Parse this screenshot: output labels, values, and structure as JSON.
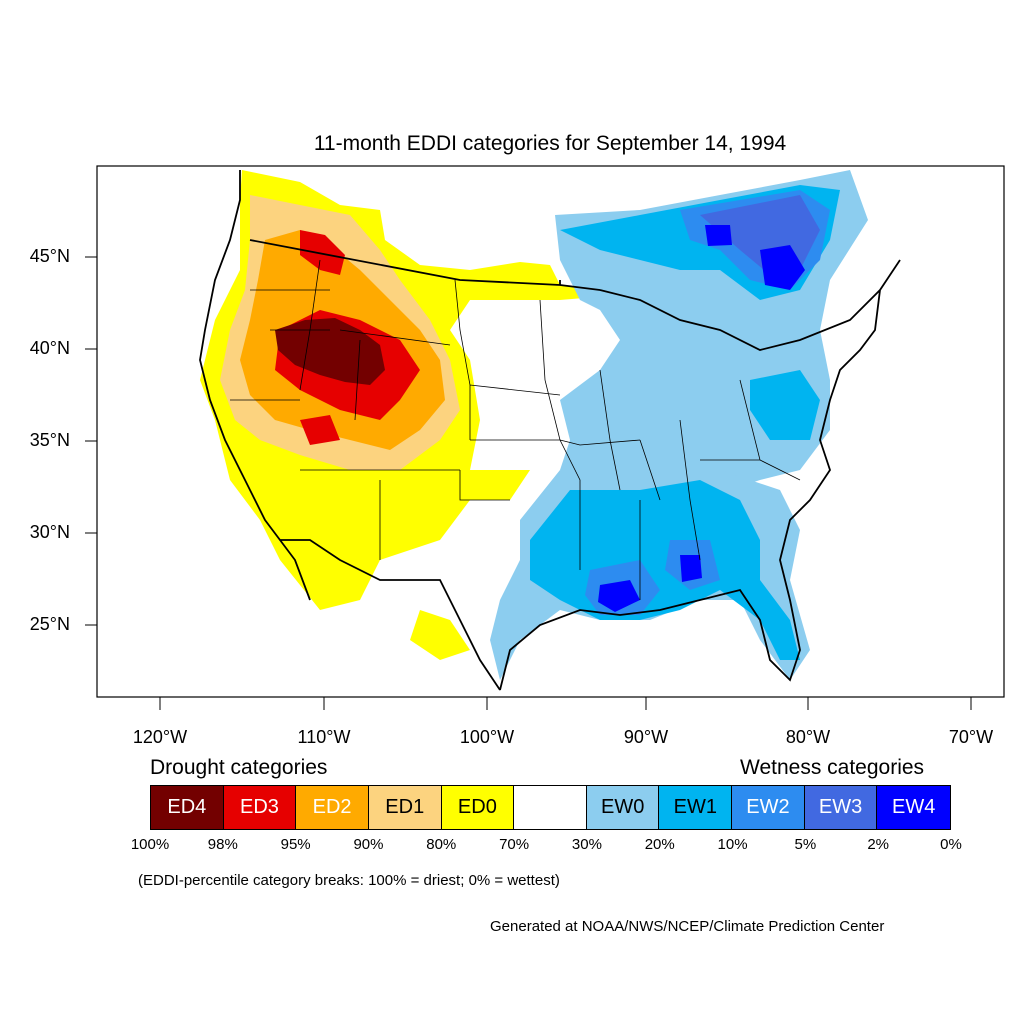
{
  "title": "11-month EDDI categories for September 14, 1994",
  "lat_labels": [
    "45°N",
    "40°N",
    "35°N",
    "30°N",
    "25°N"
  ],
  "lon_labels": [
    "120°W",
    "110°W",
    "100°W",
    "90°W",
    "80°W",
    "70°W"
  ],
  "legend": {
    "drought_heading": "Drought categories",
    "wetness_heading": "Wetness categories",
    "categories": [
      {
        "label": "ED4",
        "color": "#730000",
        "text_color": "#ffffff"
      },
      {
        "label": "ED3",
        "color": "#e60000",
        "text_color": "#ffffff"
      },
      {
        "label": "ED2",
        "color": "#ffaa00",
        "text_color": "#ffffff"
      },
      {
        "label": "ED1",
        "color": "#fcd37f",
        "text_color": "#000000"
      },
      {
        "label": "ED0",
        "color": "#ffff00",
        "text_color": "#000000"
      },
      {
        "label": "",
        "color": "#ffffff",
        "text_color": "#000000"
      },
      {
        "label": "EW0",
        "color": "#8ccdef",
        "text_color": "#000000"
      },
      {
        "label": "EW1",
        "color": "#00b4f0",
        "text_color": "#000000"
      },
      {
        "label": "EW2",
        "color": "#2d8cf0",
        "text_color": "#ffffff"
      },
      {
        "label": "EW3",
        "color": "#4169e1",
        "text_color": "#ffffff"
      },
      {
        "label": "EW4",
        "color": "#0000ff",
        "text_color": "#ffffff"
      }
    ],
    "breaks": [
      "100%",
      "98%",
      "95%",
      "90%",
      "80%",
      "70%",
      "30%",
      "20%",
      "10%",
      "5%",
      "2%",
      "0%"
    ]
  },
  "note": "(EDDI-percentile category breaks: 100% = driest; 0% = wettest)",
  "credit": "Generated at NOAA/NWS/NCEP/Climate Prediction Center"
}
